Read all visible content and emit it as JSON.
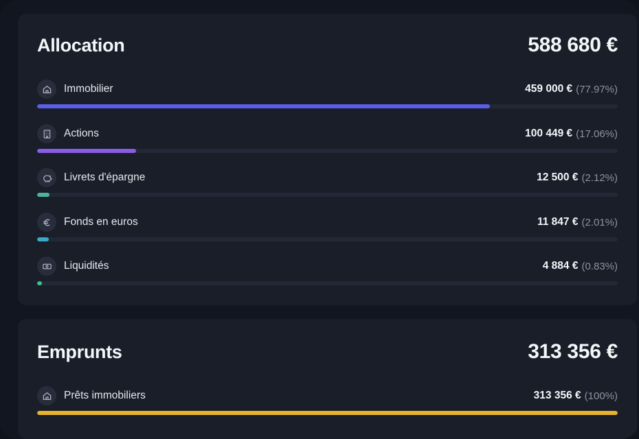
{
  "allocation": {
    "title": "Allocation",
    "total": "588 680 €",
    "items": [
      {
        "label": "Immobilier",
        "amount": "459 000 €",
        "pct": "(77.97%)",
        "fraction": 0.7797,
        "color": "#5b5ee6",
        "icon": "home-icon"
      },
      {
        "label": "Actions",
        "amount": "100 449 €",
        "pct": "(17.06%)",
        "fraction": 0.1706,
        "color": "#8a5ce6",
        "icon": "building-icon"
      },
      {
        "label": "Livrets d'épargne",
        "amount": "12 500 €",
        "pct": "(2.12%)",
        "fraction": 0.0212,
        "color": "#4fb39b",
        "icon": "piggy-bank-icon"
      },
      {
        "label": "Fonds en euros",
        "amount": "11 847 €",
        "pct": "(2.01%)",
        "fraction": 0.0201,
        "color": "#3aa9c9",
        "icon": "euro-icon"
      },
      {
        "label": "Liquidités",
        "amount": "4 884 €",
        "pct": "(0.83%)",
        "fraction": 0.0083,
        "color": "#3fbf8a",
        "icon": "banknote-icon"
      }
    ]
  },
  "loans": {
    "title": "Emprunts",
    "total": "313 356 €",
    "items": [
      {
        "label": "Prêts immobiliers",
        "amount": "313 356 €",
        "pct": "(100%)",
        "fraction": 1.0,
        "color": "#e8b32c",
        "icon": "home-icon"
      }
    ]
  }
}
